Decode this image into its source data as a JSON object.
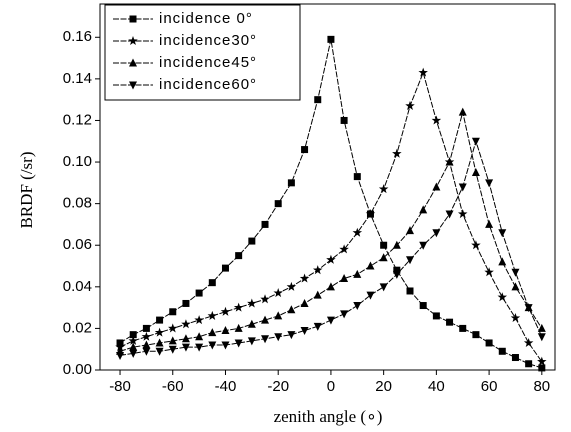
{
  "chart_data": {
    "type": "line",
    "xlabel": "zenith angle  (∘)",
    "ylabel": "BRDF (/sr)",
    "x": [
      -80,
      -75,
      -70,
      -65,
      -60,
      -55,
      -50,
      -45,
      -40,
      -35,
      -30,
      -25,
      -20,
      -15,
      -10,
      -5,
      0,
      5,
      10,
      15,
      20,
      25,
      30,
      35,
      40,
      45,
      50,
      55,
      60,
      65,
      70,
      75,
      80
    ],
    "series": [
      {
        "name": "incidence 0°",
        "color": "#000000",
        "marker": "square",
        "values": [
          0.013,
          0.017,
          0.02,
          0.024,
          0.028,
          0.032,
          0.037,
          0.042,
          0.049,
          0.055,
          0.062,
          0.07,
          0.08,
          0.09,
          0.106,
          0.13,
          0.159,
          0.12,
          0.093,
          0.075,
          0.06,
          0.048,
          0.038,
          0.031,
          0.026,
          0.023,
          0.02,
          0.017,
          0.013,
          0.009,
          0.006,
          0.003,
          0.001
        ]
      },
      {
        "name": "incidence30°",
        "color": "#000000",
        "marker": "star",
        "values": [
          0.011,
          0.014,
          0.016,
          0.018,
          0.02,
          0.022,
          0.024,
          0.026,
          0.028,
          0.03,
          0.032,
          0.034,
          0.037,
          0.04,
          0.044,
          0.048,
          0.053,
          0.058,
          0.066,
          0.075,
          0.087,
          0.104,
          0.127,
          0.143,
          0.12,
          0.1,
          0.075,
          0.06,
          0.047,
          0.035,
          0.025,
          0.013,
          0.004
        ]
      },
      {
        "name": "incidence45°",
        "color": "#000000",
        "marker": "triangle-up",
        "values": [
          0.009,
          0.011,
          0.012,
          0.013,
          0.014,
          0.015,
          0.016,
          0.018,
          0.019,
          0.02,
          0.022,
          0.024,
          0.026,
          0.029,
          0.032,
          0.036,
          0.04,
          0.044,
          0.046,
          0.05,
          0.054,
          0.06,
          0.067,
          0.077,
          0.088,
          0.1,
          0.124,
          0.095,
          0.07,
          0.052,
          0.04,
          0.03,
          0.02
        ]
      },
      {
        "name": "incidence60°",
        "color": "#000000",
        "marker": "triangle-down",
        "values": [
          0.007,
          0.008,
          0.009,
          0.009,
          0.01,
          0.011,
          0.011,
          0.012,
          0.012,
          0.013,
          0.014,
          0.015,
          0.016,
          0.017,
          0.019,
          0.021,
          0.024,
          0.027,
          0.031,
          0.036,
          0.04,
          0.046,
          0.053,
          0.06,
          0.066,
          0.075,
          0.088,
          0.11,
          0.09,
          0.066,
          0.047,
          0.03,
          0.016
        ]
      }
    ],
    "xlim": [
      -87.6,
      85
    ],
    "ylim": [
      0,
      0.176
    ],
    "xticks": [
      -80,
      -60,
      -40,
      -20,
      0,
      20,
      40,
      60,
      80
    ],
    "yticks": [
      {
        "value": 0,
        "label": "0.00"
      },
      {
        "value": 0.02,
        "label": "0.02"
      },
      {
        "value": 0.04,
        "label": "0.04"
      },
      {
        "value": 0.06,
        "label": "0.06"
      },
      {
        "value": 0.08,
        "label": "0.08"
      },
      {
        "value": 0.1,
        "label": "0.10"
      },
      {
        "value": 0.12,
        "label": "0.12"
      },
      {
        "value": 0.14,
        "label": "0.14"
      },
      {
        "value": 0.16,
        "label": "0.16"
      }
    ],
    "grid": false,
    "legend": "upper left"
  }
}
